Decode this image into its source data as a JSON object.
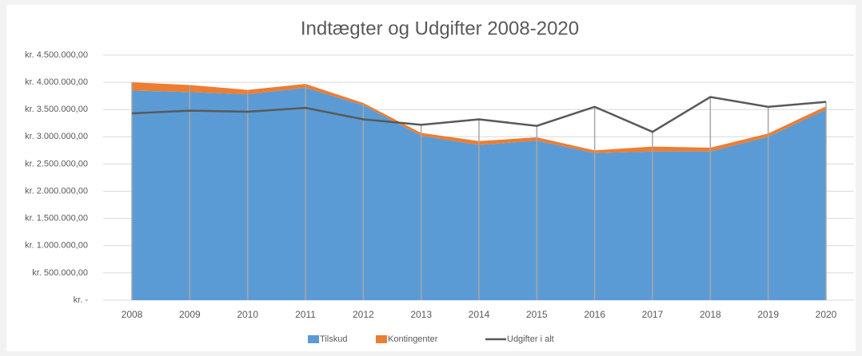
{
  "chart_data": {
    "type": "stacked-area-line",
    "title": "Indtægter og Udgifter 2008-2020",
    "categories": [
      "2008",
      "2009",
      "2010",
      "2011",
      "2012",
      "2013",
      "2014",
      "2015",
      "2016",
      "2017",
      "2018",
      "2019",
      "2020"
    ],
    "series": [
      {
        "name": "Tilskud",
        "color": "#5b9bd5",
        "type": "area",
        "values": [
          3850000,
          3820000,
          3780000,
          3900000,
          3580000,
          3020000,
          2850000,
          2930000,
          2700000,
          2730000,
          2730000,
          3000000,
          3500000
        ]
      },
      {
        "name": "Kontingenter",
        "color": "#ed7d31",
        "type": "area",
        "values": [
          150000,
          130000,
          80000,
          70000,
          40000,
          50000,
          70000,
          60000,
          50000,
          90000,
          70000,
          60000,
          60000
        ]
      },
      {
        "name": "Udgifter i alt",
        "color": "#595959",
        "type": "line",
        "values": [
          3430000,
          3480000,
          3460000,
          3530000,
          3320000,
          3220000,
          3320000,
          3200000,
          3550000,
          3090000,
          3730000,
          3550000,
          3640000
        ]
      }
    ],
    "ylim": [
      0,
      4500000
    ],
    "yticks": [
      {
        "value": 0,
        "label": "kr. -"
      },
      {
        "value": 500000,
        "label": "kr. 500.000,00"
      },
      {
        "value": 1000000,
        "label": "kr. 1.000.000,00"
      },
      {
        "value": 1500000,
        "label": "kr. 1.500.000,00"
      },
      {
        "value": 2000000,
        "label": "kr. 2.000.000,00"
      },
      {
        "value": 2500000,
        "label": "kr. 2.500.000,00"
      },
      {
        "value": 3000000,
        "label": "kr. 3.000.000,00"
      },
      {
        "value": 3500000,
        "label": "kr. 3.500.000,00"
      },
      {
        "value": 4000000,
        "label": "kr. 4.000.000,00"
      },
      {
        "value": 4500000,
        "label": "kr. 4.500.000,00"
      }
    ],
    "grid": true
  }
}
